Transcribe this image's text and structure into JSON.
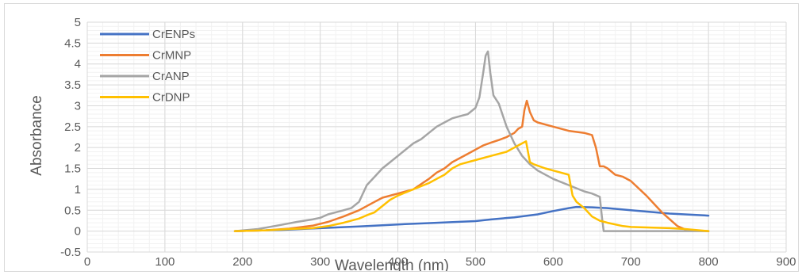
{
  "chart_data": {
    "type": "line",
    "xlabel": "Wavelength  (nm)",
    "ylabel": "Absorbance",
    "xlim": [
      0,
      900
    ],
    "ylim": [
      -0.5,
      5
    ],
    "x_ticks": [
      "0",
      "100",
      "200",
      "300",
      "400",
      "500",
      "600",
      "700",
      "800",
      "900"
    ],
    "y_ticks": [
      "-0.5",
      "0",
      "0.5",
      "1",
      "1.5",
      "2",
      "2.5",
      "3",
      "3.5",
      "4",
      "4.5",
      "5"
    ],
    "grid": true,
    "legend_position": "top-left",
    "series": [
      {
        "name": "CrENPs",
        "color": "#4472C4",
        "x": [
          190,
          250,
          300,
          350,
          400,
          450,
          500,
          520,
          550,
          580,
          600,
          620,
          630,
          650,
          670,
          700,
          750,
          800
        ],
        "y": [
          0.0,
          0.03,
          0.07,
          0.11,
          0.16,
          0.2,
          0.24,
          0.28,
          0.33,
          0.4,
          0.48,
          0.55,
          0.58,
          0.57,
          0.55,
          0.5,
          0.42,
          0.37
        ]
      },
      {
        "name": "CrMNP",
        "color": "#ED7D31",
        "x": [
          190,
          230,
          260,
          290,
          310,
          330,
          350,
          370,
          380,
          400,
          420,
          440,
          450,
          460,
          470,
          480,
          490,
          500,
          510,
          520,
          530,
          540,
          550,
          555,
          560,
          563,
          566,
          570,
          575,
          580,
          600,
          620,
          640,
          650,
          655,
          660,
          665,
          670,
          680,
          690,
          700,
          720,
          740,
          760,
          770,
          780,
          800
        ],
        "y": [
          0.0,
          0.02,
          0.06,
          0.13,
          0.22,
          0.35,
          0.5,
          0.7,
          0.8,
          0.9,
          1.0,
          1.25,
          1.4,
          1.5,
          1.65,
          1.75,
          1.85,
          1.95,
          2.05,
          2.12,
          2.18,
          2.25,
          2.35,
          2.45,
          2.5,
          2.9,
          3.12,
          2.85,
          2.65,
          2.6,
          2.5,
          2.4,
          2.35,
          2.3,
          2.0,
          1.55,
          1.55,
          1.5,
          1.35,
          1.3,
          1.2,
          0.85,
          0.45,
          0.12,
          0.04,
          0.01,
          0.0
        ]
      },
      {
        "name": "CrANP",
        "color": "#A5A5A5",
        "x": [
          190,
          220,
          250,
          270,
          290,
          300,
          310,
          320,
          330,
          340,
          350,
          360,
          370,
          380,
          390,
          400,
          410,
          420,
          430,
          440,
          450,
          460,
          470,
          480,
          490,
          500,
          505,
          510,
          513,
          516,
          519,
          523,
          530,
          540,
          550,
          560,
          570,
          580,
          600,
          620,
          640,
          650,
          660,
          663,
          665,
          670,
          700,
          800
        ],
        "y": [
          0.0,
          0.05,
          0.15,
          0.22,
          0.28,
          0.32,
          0.4,
          0.45,
          0.5,
          0.55,
          0.7,
          1.1,
          1.3,
          1.5,
          1.65,
          1.8,
          1.95,
          2.1,
          2.2,
          2.35,
          2.5,
          2.6,
          2.7,
          2.75,
          2.8,
          2.95,
          3.2,
          3.8,
          4.2,
          4.3,
          3.8,
          3.25,
          3.05,
          2.5,
          2.1,
          1.8,
          1.6,
          1.45,
          1.25,
          1.1,
          0.95,
          0.9,
          0.82,
          0.3,
          0.0,
          0.0,
          0.0,
          0.0
        ]
      },
      {
        "name": "CrDNP",
        "color": "#FFC000",
        "x": [
          190,
          230,
          260,
          290,
          310,
          330,
          350,
          360,
          370,
          380,
          390,
          400,
          420,
          440,
          450,
          460,
          470,
          480,
          500,
          520,
          540,
          550,
          555,
          560,
          565,
          570,
          575,
          590,
          600,
          610,
          620,
          625,
          630,
          640,
          650,
          660,
          670,
          690,
          700,
          750,
          770,
          800
        ],
        "y": [
          0.0,
          0.02,
          0.05,
          0.07,
          0.12,
          0.2,
          0.3,
          0.38,
          0.45,
          0.6,
          0.75,
          0.85,
          1.0,
          1.15,
          1.25,
          1.35,
          1.5,
          1.6,
          1.7,
          1.8,
          1.9,
          2.0,
          2.05,
          2.1,
          2.15,
          1.65,
          1.6,
          1.5,
          1.45,
          1.4,
          1.35,
          0.85,
          0.7,
          0.55,
          0.35,
          0.25,
          0.2,
          0.12,
          0.1,
          0.07,
          0.05,
          0.0
        ]
      }
    ]
  }
}
